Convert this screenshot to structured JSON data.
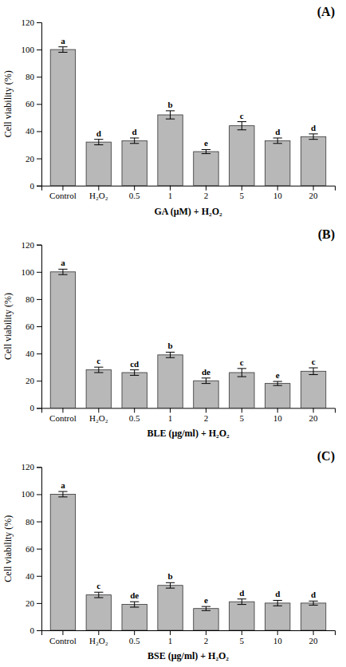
{
  "chart_data": [
    {
      "type": "bar",
      "title": "(A)",
      "categories": [
        "Control",
        "H₂O₂",
        "0.5",
        "1",
        "2",
        "5",
        "10",
        "20"
      ],
      "values": [
        100,
        32,
        33,
        52,
        25,
        44,
        33,
        36
      ],
      "errors": [
        2,
        2,
        2,
        3,
        1.5,
        3,
        2,
        2
      ],
      "annotations": [
        "a",
        "d",
        "d",
        "b",
        "e",
        "c",
        "d",
        "d"
      ],
      "xlabel": "GA (μM) + H₂O₂",
      "ylabel": "Cell viability (%)",
      "color": "#b8b8b8",
      "ylim": [
        0,
        120
      ],
      "yticks": [
        0,
        20,
        40,
        60,
        80,
        100,
        120
      ],
      "grid": false
    },
    {
      "type": "bar",
      "title": "(B)",
      "categories": [
        "Control",
        "H₂O₂",
        "0.5",
        "1",
        "2",
        "5",
        "10",
        "20"
      ],
      "values": [
        100,
        28,
        26,
        39,
        20,
        26,
        18,
        27
      ],
      "errors": [
        2,
        2,
        2,
        2,
        2,
        3,
        1.5,
        2.5
      ],
      "annotations": [
        "a",
        "c",
        "cd",
        "b",
        "de",
        "c",
        "e",
        "c"
      ],
      "xlabel": "BLE (μg/ml) + H₂O₂",
      "ylabel": "Cell viability (%)",
      "color": "#b8b8b8",
      "ylim": [
        0,
        120
      ],
      "yticks": [
        0,
        20,
        40,
        60,
        80,
        100,
        120
      ],
      "grid": false
    },
    {
      "type": "bar",
      "title": "(C)",
      "categories": [
        "Control",
        "H₂O₂",
        "0.5",
        "1",
        "2",
        "5",
        "10",
        "20"
      ],
      "values": [
        100,
        26,
        19,
        33,
        16,
        21,
        20,
        20
      ],
      "errors": [
        2,
        2,
        2,
        2,
        1.5,
        2,
        2,
        1.5
      ],
      "annotations": [
        "a",
        "c",
        "de",
        "b",
        "e",
        "d",
        "d",
        "d"
      ],
      "xlabel": "BSE (μg/ml) + H₂O₂",
      "ylabel": "Cell viability (%)",
      "color": "#b8b8b8",
      "ylim": [
        0,
        120
      ],
      "yticks": [
        0,
        20,
        40,
        60,
        80,
        100,
        120
      ],
      "grid": false
    }
  ]
}
